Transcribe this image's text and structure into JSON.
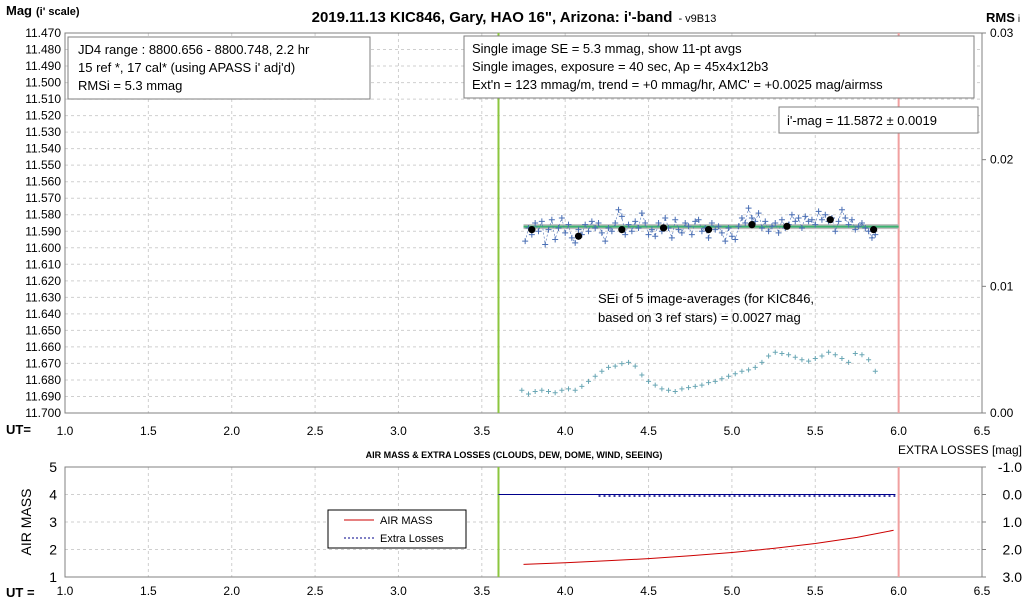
{
  "colors": {
    "data_blue": "#4a6fb5",
    "extra_blue": "#00008b",
    "teal": "#6aa7b5",
    "green_line": "#8cc63f",
    "red_line": "#f0a0a0",
    "fit_green": "#3cb371",
    "fit_gray": "#bdbdbd",
    "airmass_red": "#cc0000"
  },
  "chart_data": [
    {
      "type": "scatter",
      "title": "2019.11.13 KIC846, Gary, HAO 16\", Arizona: i'-band",
      "version": "- v9B13",
      "ylabel": "Mag",
      "ylabel_unit": "(i' scale)",
      "y2label": "RMS",
      "y2label_unit": "i",
      "xlabel": "UT=",
      "xlim": [
        1.0,
        6.5
      ],
      "ylim": [
        11.7,
        11.47
      ],
      "y_reversed": true,
      "y2lim": [
        0.0,
        0.03
      ],
      "x_ticks": [
        "1.0",
        "1.5",
        "2.0",
        "2.5",
        "3.0",
        "3.5",
        "4.0",
        "4.5",
        "5.0",
        "5.5",
        "6.0",
        "6.5"
      ],
      "y_ticks": [
        "11.470",
        "11.480",
        "11.490",
        "11.500",
        "11.510",
        "11.520",
        "11.530",
        "11.540",
        "11.550",
        "11.560",
        "11.570",
        "11.580",
        "11.590",
        "11.600",
        "11.610",
        "11.620",
        "11.630",
        "11.640",
        "11.650",
        "11.660",
        "11.670",
        "11.680",
        "11.690",
        "11.700"
      ],
      "y2_ticks": [
        "0.03",
        "0.02",
        "0.01",
        "0.00"
      ],
      "grid": true,
      "vlines": [
        3.6,
        6.0
      ],
      "fit_mag": 11.5872,
      "fit_x_range": [
        3.75,
        6.0
      ],
      "single_images": {
        "x": [
          3.76,
          3.78,
          3.8,
          3.82,
          3.84,
          3.86,
          3.88,
          3.9,
          3.92,
          3.94,
          3.96,
          3.98,
          4.0,
          4.02,
          4.04,
          4.06,
          4.08,
          4.1,
          4.12,
          4.14,
          4.16,
          4.18,
          4.2,
          4.22,
          4.24,
          4.26,
          4.28,
          4.3,
          4.32,
          4.34,
          4.36,
          4.38,
          4.4,
          4.42,
          4.44,
          4.46,
          4.48,
          4.5,
          4.52,
          4.54,
          4.56,
          4.58,
          4.6,
          4.62,
          4.64,
          4.66,
          4.68,
          4.7,
          4.72,
          4.74,
          4.76,
          4.78,
          4.8,
          4.82,
          4.84,
          4.86,
          4.88,
          4.9,
          4.92,
          4.94,
          4.96,
          4.98,
          5.0,
          5.02,
          5.04,
          5.06,
          5.08,
          5.1,
          5.12,
          5.14,
          5.16,
          5.18,
          5.2,
          5.22,
          5.24,
          5.26,
          5.28,
          5.3,
          5.32,
          5.34,
          5.36,
          5.38,
          5.4,
          5.42,
          5.44,
          5.46,
          5.48,
          5.5,
          5.52,
          5.54,
          5.56,
          5.58,
          5.6,
          5.62,
          5.64,
          5.66,
          5.68,
          5.7,
          5.72,
          5.74,
          5.76,
          5.78,
          5.8,
          5.82,
          5.84,
          5.86
        ],
        "y": [
          11.596,
          11.588,
          11.592,
          11.585,
          11.59,
          11.584,
          11.598,
          11.589,
          11.583,
          11.595,
          11.588,
          11.582,
          11.591,
          11.586,
          11.594,
          11.597,
          11.589,
          11.592,
          11.586,
          11.59,
          11.584,
          11.588,
          11.585,
          11.591,
          11.596,
          11.588,
          11.59,
          11.585,
          11.577,
          11.581,
          11.592,
          11.586,
          11.59,
          11.584,
          11.588,
          11.579,
          11.585,
          11.592,
          11.589,
          11.593,
          11.585,
          11.59,
          11.582,
          11.588,
          11.594,
          11.583,
          11.589,
          11.591,
          11.585,
          11.587,
          11.592,
          11.584,
          11.583,
          11.59,
          11.588,
          11.594,
          11.585,
          11.589,
          11.587,
          11.591,
          11.596,
          11.588,
          11.593,
          11.595,
          11.587,
          11.582,
          11.585,
          11.576,
          11.582,
          11.584,
          11.579,
          11.588,
          11.584,
          11.59,
          11.587,
          11.585,
          11.591,
          11.583,
          11.588,
          11.586,
          11.58,
          11.584,
          11.582,
          11.588,
          11.581,
          11.584,
          11.583,
          11.586,
          11.578,
          11.583,
          11.58,
          11.584,
          11.582,
          11.59,
          11.584,
          11.577,
          11.582,
          11.586,
          11.583,
          11.589,
          11.587,
          11.585,
          11.588,
          11.59,
          11.594,
          11.592
        ]
      },
      "averages": {
        "x": [
          3.8,
          4.08,
          4.34,
          4.59,
          4.86,
          5.12,
          5.33,
          5.59,
          5.85
        ],
        "y": [
          11.589,
          11.593,
          11.589,
          11.588,
          11.589,
          11.586,
          11.587,
          11.583,
          11.589
        ]
      },
      "rms": {
        "x": [
          3.74,
          3.78,
          3.82,
          3.86,
          3.9,
          3.94,
          3.98,
          4.02,
          4.06,
          4.1,
          4.14,
          4.18,
          4.22,
          4.26,
          4.3,
          4.34,
          4.38,
          4.42,
          4.46,
          4.5,
          4.54,
          4.58,
          4.62,
          4.66,
          4.7,
          4.74,
          4.78,
          4.82,
          4.86,
          4.9,
          4.94,
          4.98,
          5.02,
          5.06,
          5.1,
          5.14,
          5.18,
          5.22,
          5.26,
          5.3,
          5.34,
          5.38,
          5.42,
          5.46,
          5.5,
          5.54,
          5.58,
          5.62,
          5.66,
          5.7,
          5.74,
          5.78,
          5.82,
          5.86
        ],
        "y": [
          0.0018,
          0.0015,
          0.0017,
          0.0018,
          0.0017,
          0.0016,
          0.0018,
          0.0019,
          0.0018,
          0.0021,
          0.0025,
          0.0029,
          0.0033,
          0.0036,
          0.0037,
          0.0039,
          0.004,
          0.0037,
          0.003,
          0.0025,
          0.0022,
          0.0019,
          0.0018,
          0.0017,
          0.0019,
          0.002,
          0.0021,
          0.0022,
          0.0024,
          0.0025,
          0.0027,
          0.0029,
          0.0031,
          0.0033,
          0.0034,
          0.0036,
          0.004,
          0.0045,
          0.0048,
          0.0047,
          0.0046,
          0.0044,
          0.0042,
          0.0041,
          0.0043,
          0.0045,
          0.0048,
          0.0046,
          0.0043,
          0.004,
          0.0047,
          0.0046,
          0.0042,
          0.0033
        ]
      },
      "box1_lines": [
        "JD4 range : 8800.656 - 8800.748, 2.2  hr",
        "15 ref *, 17 cal* (using APASS i' adj'd)",
        "RMSi = 5.3 mmag"
      ],
      "box2_lines": [
        "Single image SE = 5.3 mmag, show 11-pt avgs",
        "Single images, exposure = 40 sec, Ap = 45x4x12b3",
        "Ext'n = 123 mmag/m, trend = +0 mmag/hr, AMC' = +0.0025 mag/airmss"
      ],
      "imag_label": "i'-mag = 11.5872 ± 0.0019",
      "sei_lines": [
        "SEi of 5 image-averages (for KIC846,",
        "based on 3 ref stars) = 0.0027 mag"
      ]
    },
    {
      "type": "line",
      "title": "AIR MASS & EXTRA LOSSES (CLOUDS, DEW, DOME, WIND, SEEING)",
      "ylabel": "AIR MASS",
      "y2label": "EXTRA LOSSES [mag]",
      "xlabel": "UT =",
      "xlim": [
        1.0,
        6.5
      ],
      "ylim": [
        1,
        5
      ],
      "y2lim": [
        3.0,
        -1.0
      ],
      "x_ticks": [
        "1.0",
        "1.5",
        "2.0",
        "2.5",
        "3.0",
        "3.5",
        "4.0",
        "4.5",
        "5.0",
        "5.5",
        "6.0",
        "6.5"
      ],
      "y_ticks": [
        "5",
        "4",
        "3",
        "2",
        "1"
      ],
      "y2_ticks": [
        "-1.0",
        "0.0",
        "1.0",
        "2.0",
        "3.0"
      ],
      "grid": true,
      "vlines": [
        3.6,
        6.0
      ],
      "legend": [
        "AIR MASS",
        "Extra Losses"
      ],
      "legend_position": "center-left",
      "airmass": {
        "x": [
          3.75,
          4.0,
          4.25,
          4.5,
          4.75,
          5.0,
          5.25,
          5.5,
          5.75,
          5.97
        ],
        "y": [
          1.46,
          1.52,
          1.59,
          1.67,
          1.77,
          1.89,
          2.04,
          2.22,
          2.44,
          2.7
        ]
      },
      "extra_losses": {
        "x_start": 3.6,
        "x_end": 5.98,
        "value": 0.0
      }
    }
  ]
}
